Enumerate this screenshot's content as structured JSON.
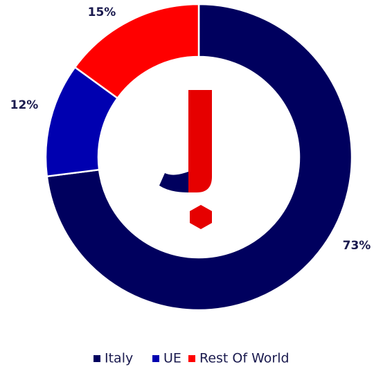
{
  "chart_data": {
    "type": "donut",
    "categories": [
      "Italy",
      "UE",
      "Rest Of World"
    ],
    "values": [
      73,
      12,
      15
    ],
    "value_labels": [
      "73%",
      "12%",
      "15%"
    ],
    "colors": [
      "#00005e",
      "#0000b0",
      "#ff0000"
    ],
    "legend": "bottom"
  }
}
